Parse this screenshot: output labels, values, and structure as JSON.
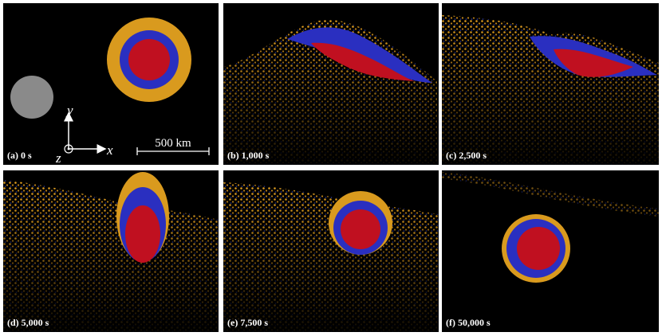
{
  "panels": [
    {
      "label": "(a) 0 s"
    },
    {
      "label": "(b) 1,000 s"
    },
    {
      "label": "(c) 2,500 s"
    },
    {
      "label": "(d) 5,000 s"
    },
    {
      "label": "(e) 7,500 s"
    },
    {
      "label": "(f) 50,000 s"
    }
  ],
  "axes": {
    "x": "x",
    "y": "y",
    "z": "z"
  },
  "scale_bar": "500 km"
}
